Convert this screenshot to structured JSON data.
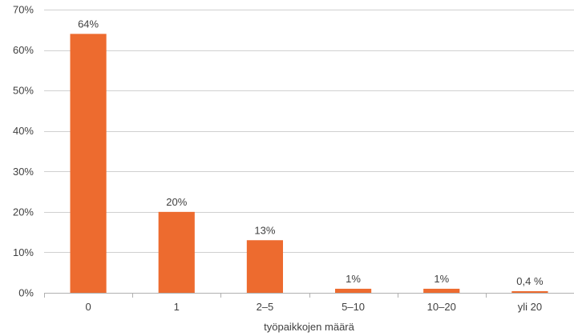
{
  "chart_data": {
    "type": "bar",
    "title": "",
    "xlabel": "työpaikkojen määrä",
    "ylabel": "",
    "categories": [
      "0",
      "1",
      "2–5",
      "5–10",
      "10–20",
      "yli 20"
    ],
    "values": [
      64,
      20,
      13,
      1,
      1,
      0.4
    ],
    "data_labels": [
      "64%",
      "20%",
      "13%",
      "1%",
      "1%",
      "0,4 %"
    ],
    "ylim": [
      0,
      70
    ],
    "yticks": [
      0,
      10,
      20,
      30,
      40,
      50,
      60,
      70
    ],
    "ytick_labels": [
      "0%",
      "10%",
      "20%",
      "30%",
      "40%",
      "50%",
      "60%",
      "70%"
    ],
    "grid": true,
    "legend": "none",
    "colors": {
      "bar": "#ED6B2F",
      "grid": "#D0D0D0",
      "axis": "#B0B0B0",
      "text": "#404040"
    }
  }
}
